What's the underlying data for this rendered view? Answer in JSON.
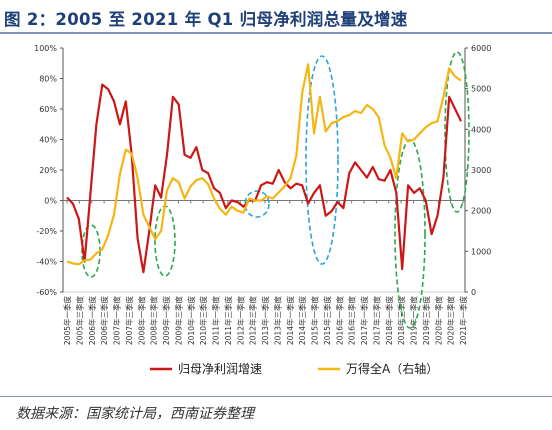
{
  "figure_title": "图 2：2005 至 2021 年 Q1 归母净利润总量及增速",
  "source": "数据来源：国家统计局，西南证券整理",
  "chart_data": {
    "type": "line",
    "title": "",
    "x_labels": [
      "2005年一季度",
      "2005年三季度",
      "2006年一季度",
      "2006年三季度",
      "2007年一季度",
      "2007年三季度",
      "2008年一季度",
      "2008年三季度",
      "2009年一季度",
      "2009年三季度",
      "2010年一季度",
      "2010年三季度",
      "2011年一季度",
      "2011年三季度",
      "2012年一季度",
      "2012年三季度",
      "2013年一季度",
      "2013年三季度",
      "2014年一季度",
      "2014年三季度",
      "2015年一季度",
      "2015年三季度",
      "2016年一季度",
      "2016年三季度",
      "2017年一季度",
      "2017年三季度",
      "2018年一季度",
      "2018年三季度",
      "2019年一季度",
      "2019年三季度",
      "2020年一季度",
      "2020年三季度",
      "2021年一季度"
    ],
    "left_axis": {
      "min": -0.6,
      "max": 1.0,
      "ticks": [
        "100%",
        "80%",
        "60%",
        "40%",
        "20%",
        "0%",
        "-20%",
        "-40%",
        "-60%"
      ]
    },
    "right_axis": {
      "min": 0,
      "max": 6000,
      "ticks": [
        "6000",
        "5000",
        "4000",
        "3000",
        "2000",
        "1000",
        "0"
      ]
    },
    "grid": false,
    "legend_position": "bottom",
    "series": [
      {
        "name": "归母净利润增速",
        "axis": "left",
        "color": "#cc1717",
        "values": [
          0.02,
          -0.02,
          -0.12,
          -0.4,
          0.05,
          0.5,
          0.76,
          0.73,
          0.65,
          0.5,
          0.65,
          0.3,
          -0.25,
          -0.47,
          -0.2,
          0.1,
          0.02,
          0.3,
          0.68,
          0.63,
          0.3,
          0.28,
          0.35,
          0.2,
          0.18,
          0.08,
          0.05,
          -0.05,
          0.0,
          -0.01,
          -0.04,
          0.0,
          0.0,
          0.1,
          0.12,
          0.11,
          0.2,
          0.12,
          0.08,
          0.11,
          0.1,
          -0.02,
          0.05,
          0.1,
          -0.1,
          -0.07,
          -0.01,
          -0.05,
          0.18,
          0.25,
          0.2,
          0.15,
          0.22,
          0.14,
          0.13,
          0.2,
          0.05,
          -0.45,
          0.1,
          0.05,
          0.08,
          0.0,
          -0.22,
          -0.1,
          0.15,
          0.68,
          0.6,
          0.52
        ]
      },
      {
        "name": "万得全A（右轴）",
        "axis": "right",
        "color": "#f5b614",
        "values": [
          750,
          700,
          680,
          780,
          800,
          950,
          1050,
          1400,
          1900,
          2900,
          3500,
          3400,
          2800,
          1900,
          1600,
          1300,
          1500,
          2500,
          2800,
          2700,
          2300,
          2600,
          2750,
          2800,
          2650,
          2300,
          2050,
          1900,
          2100,
          2000,
          1950,
          2300,
          2250,
          2250,
          2350,
          2300,
          2450,
          2600,
          2800,
          3350,
          4900,
          5600,
          3900,
          4800,
          3950,
          4150,
          4200,
          4300,
          4350,
          4450,
          4400,
          4600,
          4500,
          4300,
          3600,
          3300,
          2800,
          3900,
          3700,
          3750,
          3900,
          4050,
          4150,
          4200,
          4800,
          5500,
          5300,
          5200
        ]
      }
    ],
    "annotations": [
      {
        "type": "ellipse",
        "style": "dashed",
        "color": "#2aa84a",
        "around": "2006年一季度 trough"
      },
      {
        "type": "ellipse",
        "style": "dashed",
        "color": "#2aa84a",
        "around": "2008年四季度 trough"
      },
      {
        "type": "ellipse",
        "style": "dashed",
        "color": "#2aa3d6",
        "around": "2012年三季度"
      },
      {
        "type": "ellipse",
        "style": "dashed",
        "color": "#2aa3d6",
        "around": "2015年二季度 peak"
      },
      {
        "type": "ellipse",
        "style": "dashed",
        "color": "#2aa84a",
        "around": "2018年四季度 trough"
      },
      {
        "type": "ellipse",
        "style": "dashed",
        "color": "#2aa84a",
        "around": "2020年四季度 peak"
      }
    ]
  }
}
